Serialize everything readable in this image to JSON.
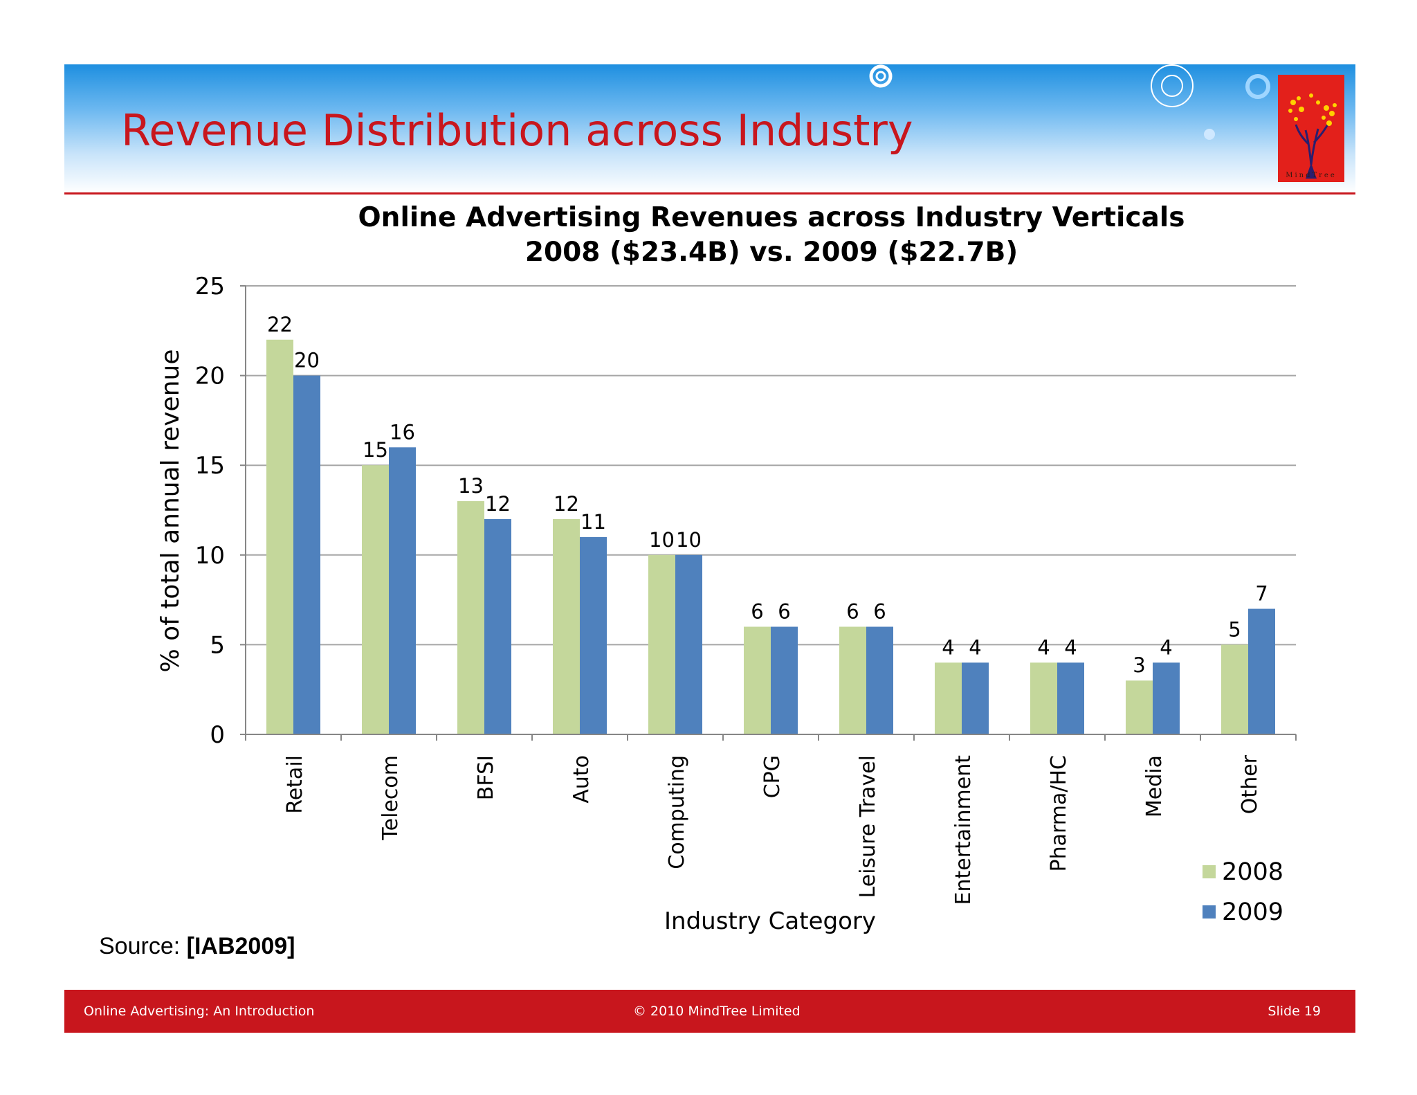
{
  "slide": {
    "title": "Revenue Distribution across Industry",
    "logo_text": "MindTree",
    "source_label": "Source:",
    "source_ref": "[IAB2009]",
    "footer_left": "Online Advertising: An Introduction",
    "footer_center": "© 2010 MindTree Limited",
    "footer_right": "Slide 19"
  },
  "colors": {
    "accent_red": "#c8161d",
    "series_2008": "#c4d79b",
    "series_2009": "#4f81bd"
  },
  "chart_data": {
    "type": "bar",
    "title_line1": "Online Advertising Revenues across Industry Verticals",
    "title_line2": "2008 ($23.4B) vs. 2009 ($22.7B)",
    "xlabel": "Industry Category",
    "ylabel": "% of total annual revenue",
    "ylim": [
      0,
      25
    ],
    "yticks": [
      0,
      5,
      10,
      15,
      20,
      25
    ],
    "grid": true,
    "legend_position": "bottom-right",
    "categories": [
      "Retail",
      "Telecom",
      "BFSI",
      "Auto",
      "Computing",
      "CPG",
      "Leisure Travel",
      "Entertainment",
      "Pharma/HC",
      "Media",
      "Other"
    ],
    "series": [
      {
        "name": "2008",
        "values": [
          22,
          15,
          13,
          12,
          10,
          6,
          6,
          4,
          4,
          3,
          5
        ]
      },
      {
        "name": "2009",
        "values": [
          20,
          16,
          12,
          11,
          10,
          6,
          6,
          4,
          4,
          4,
          7
        ]
      }
    ]
  }
}
